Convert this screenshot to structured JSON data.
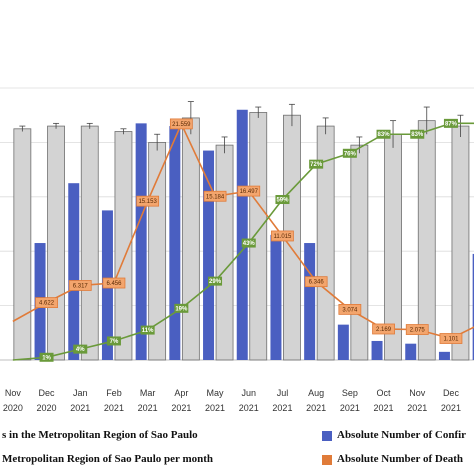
{
  "chart_data": {
    "type": "bar",
    "categories": [
      {
        "month": "Nov",
        "year": "2020"
      },
      {
        "month": "Dec",
        "year": "2020"
      },
      {
        "month": "Jan",
        "year": "2021"
      },
      {
        "month": "Feb",
        "year": "2021"
      },
      {
        "month": "Mar",
        "year": "2021"
      },
      {
        "month": "Apr",
        "year": "2021"
      },
      {
        "month": "May",
        "year": "2021"
      },
      {
        "month": "Jun",
        "year": "2021"
      },
      {
        "month": "Jul",
        "year": "2021"
      },
      {
        "month": "Aug",
        "year": "2021"
      },
      {
        "month": "Sep",
        "year": "2021"
      },
      {
        "month": "Oct",
        "year": "2021"
      },
      {
        "month": "Nov",
        "year": "2021"
      },
      {
        "month": "Dec",
        "year": "2021"
      },
      {
        "month": "",
        "year": ""
      }
    ],
    "series": [
      {
        "kind": "bar",
        "color": "#4a5fc1",
        "values": [
          0,
          43,
          65,
          55,
          87,
          86,
          77,
          92,
          46,
          43,
          13,
          7,
          6,
          3,
          39
        ]
      },
      {
        "kind": "bar",
        "color": "#d3d3d3",
        "values": [
          85,
          86,
          86,
          84,
          80,
          89,
          79,
          91,
          90,
          86,
          79,
          83,
          88,
          86,
          0
        ],
        "errors": [
          1,
          1,
          1,
          1,
          3,
          6,
          3,
          2,
          4,
          3,
          3,
          5,
          5,
          4,
          0
        ]
      },
      {
        "kind": "line",
        "color": "#e07b39",
        "values": [
          14.2,
          21.1,
          27.4,
          28.3,
          58.4,
          86.8,
          60.2,
          62.1,
          45.6,
          28.8,
          18.6,
          11.4,
          11.2,
          7.9,
          14.0
        ],
        "labels": [
          "",
          "4.622",
          "6.317",
          "6.456",
          "15.153",
          "21.559",
          "15.184",
          "16.497",
          "11.015",
          "6.346",
          "3.074",
          "2.169",
          "2.075",
          "1.101",
          ""
        ]
      },
      {
        "kind": "line",
        "color": "#6a9a3a",
        "values": [
          0,
          1,
          4,
          7,
          11,
          19,
          29,
          43,
          59,
          72,
          76,
          83,
          83,
          87,
          87
        ],
        "labels": [
          "",
          "1%",
          "4%",
          "7%",
          "11%",
          "19%",
          "29%",
          "43%",
          "59%",
          "72%",
          "76%",
          "83%",
          "83%",
          "87%",
          ""
        ]
      }
    ],
    "ylim": [
      0,
      100
    ]
  },
  "legend": [
    {
      "text": "s in the Metropolitan Region of Sao Paulo",
      "color": ""
    },
    {
      "text": "Absolute Number of Confir",
      "color": "#4a5fc1"
    },
    {
      "text": "Metropolitan Region of Sao Paulo per month",
      "color": ""
    },
    {
      "text": "Absolute Number of Death",
      "color": "#e07b39"
    }
  ]
}
